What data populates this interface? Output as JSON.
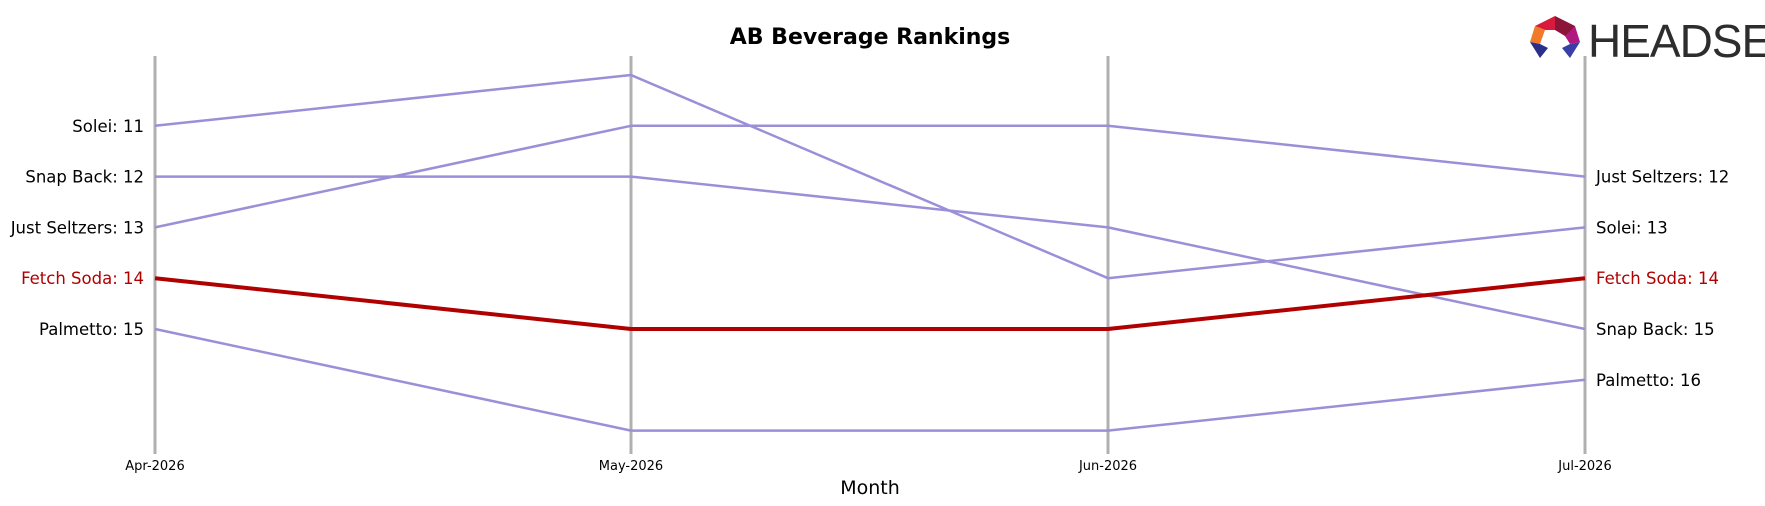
{
  "chart_data": {
    "type": "line",
    "title": "AB Beverage Rankings",
    "xlabel": "Month",
    "ylabel": "",
    "categories": [
      "Apr-2026",
      "May-2026",
      "Jun-2026",
      "Jul-2026"
    ],
    "y_inverted": true,
    "ylim": [
      10,
      17
    ],
    "grid": false,
    "highlight_series": "Fetch Soda",
    "series": [
      {
        "name": "Solei",
        "values": [
          11,
          10,
          14,
          13
        ],
        "highlight": false
      },
      {
        "name": "Snap Back",
        "values": [
          12,
          12,
          13,
          15
        ],
        "highlight": false
      },
      {
        "name": "Just Seltzers",
        "values": [
          13,
          11,
          11,
          12
        ],
        "highlight": false
      },
      {
        "name": "Fetch Soda",
        "values": [
          14,
          15,
          15,
          14
        ],
        "highlight": true
      },
      {
        "name": "Palmetto",
        "values": [
          15,
          17,
          17,
          16
        ],
        "highlight": false
      }
    ],
    "colors": {
      "series": "#9b8fd8",
      "highlight": "#b00000",
      "axis": "#b0b0b0",
      "text": "#000000"
    }
  },
  "logo": {
    "text": "HEADSET",
    "icon": "headset-logo-icon"
  }
}
